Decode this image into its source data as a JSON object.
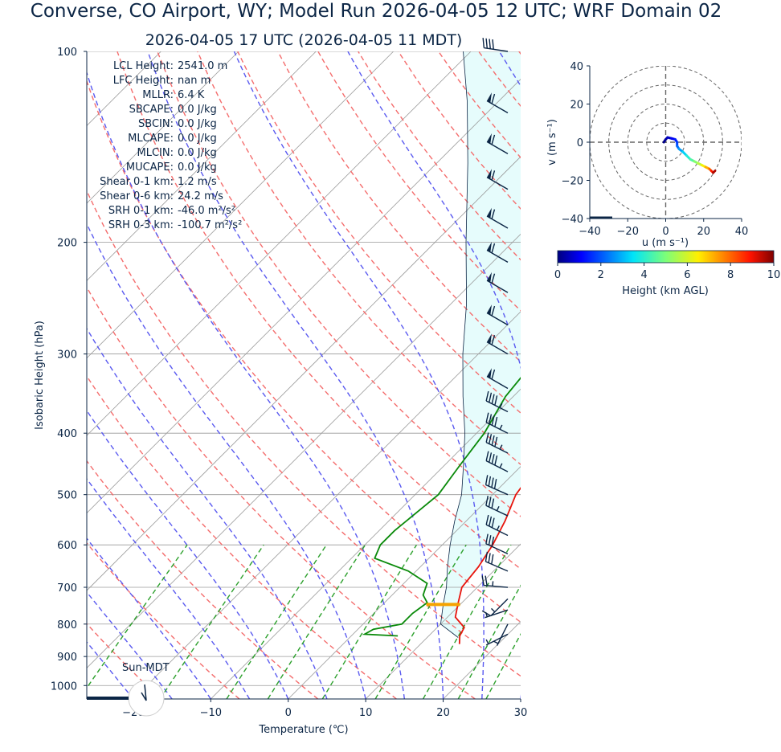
{
  "title": "Converse, CO Airport, WY; Model Run 2026-04-05 12 UTC; WRF Domain 02",
  "subtitle": "2026-04-05 17 UTC  (2026-04-05 11 MDT)",
  "stats": [
    {
      "label": "LCL Height:",
      "value": "2541.0 m"
    },
    {
      "label": "LFC Height:",
      "value": "nan m"
    },
    {
      "label": "MLLR:",
      "value": "6.4 K"
    },
    {
      "label": "SBCAPE:",
      "value": "0.0 J/kg"
    },
    {
      "label": "SBCIN:",
      "value": "0.0 J/kg"
    },
    {
      "label": "MLCAPE:",
      "value": "0.0 J/kg"
    },
    {
      "label": "MLCIN:",
      "value": "0.0 J/kg"
    },
    {
      "label": "MUCAPE:",
      "value": "0.0 J/kg"
    },
    {
      "label": "Shear 0-1 km:",
      "value": "1.2 m/s"
    },
    {
      "label": "Shear 0-6 km:",
      "value": "24.2 m/s"
    },
    {
      "label": "SRH 0-1 km:",
      "value": "-46.0 m²/s²"
    },
    {
      "label": "SRH 0-3 km:",
      "value": "-100.7 m²/s²"
    }
  ],
  "sun_label": "Sun-MDT",
  "colors": {
    "temperature": "#e8140c",
    "dewpoint": "#0a8a0a",
    "parcel": "#0b2545",
    "cape_fill": "#e6fcfc",
    "dry_adiabat": "#f46d6d",
    "moist_adiabat": "#5a5af0",
    "mixing_ratio": "#2ca02c",
    "isotherm": "#9a9a9a",
    "lcl_marker": "#f5a300",
    "barb": "#0b2545"
  },
  "chart_data": [
    {
      "type": "line",
      "name": "skew-t",
      "xlabel": "Temperature (℃)",
      "ylabel": "Isobaric Height (hPa)",
      "xlim": [
        -26,
        30
      ],
      "ylim": [
        1050,
        100
      ],
      "x_ticks": [
        -20,
        -10,
        0,
        10,
        20,
        30
      ],
      "x_tick_labels": [
        "−20",
        "−10",
        "0",
        "10",
        "20",
        "30"
      ],
      "y_ticks": [
        100,
        200,
        300,
        400,
        500,
        600,
        700,
        800,
        900,
        1000
      ],
      "y_scale": "log",
      "grid": true,
      "series": [
        {
          "key": "temperature",
          "points": [
            [
              860,
              15
            ],
            [
              835,
              14
            ],
            [
              810,
              13.5
            ],
            [
              780,
              11
            ],
            [
              740,
              9.5
            ],
            [
              700,
              8
            ],
            [
              650,
              7.5
            ],
            [
              600,
              6.5
            ],
            [
              550,
              5
            ],
            [
              500,
              3
            ],
            [
              450,
              2
            ],
            [
              400,
              1
            ],
            [
              350,
              -2
            ],
            [
              300,
              -6
            ],
            [
              250,
              -10.5
            ],
            [
              220,
              -12
            ],
            [
              185,
              -4
            ],
            [
              155,
              6
            ],
            [
              137,
              16
            ],
            [
              118,
              18
            ],
            [
              100,
              22
            ]
          ]
        },
        {
          "key": "dewpoint",
          "points": [
            [
              835,
              6
            ],
            [
              830,
              1.5
            ],
            [
              815,
              2
            ],
            [
              800,
              5
            ],
            [
              770,
              5
            ],
            [
              740,
              5.5
            ],
            [
              720,
              4
            ],
            [
              690,
              3
            ],
            [
              660,
              -1
            ],
            [
              630,
              -7
            ],
            [
              600,
              -8
            ],
            [
              570,
              -8
            ],
            [
              500,
              -7
            ],
            [
              450,
              -8
            ],
            [
              400,
              -9
            ],
            [
              350,
              -11
            ],
            [
              300,
              -12
            ],
            [
              250,
              -14
            ],
            [
              220,
              -15
            ],
            [
              200,
              -14.5
            ],
            [
              163,
              -15
            ],
            [
              150,
              -13
            ],
            [
              100,
              -3
            ]
          ]
        },
        {
          "key": "parcel",
          "points": [
            [
              840,
              14
            ],
            [
              800,
              10
            ],
            [
              745,
              7.8
            ],
            [
              700,
              6
            ],
            [
              650,
              3.5
            ],
            [
              600,
              1
            ],
            [
              550,
              -1.5
            ],
            [
              500,
              -4
            ],
            [
              450,
              -7.5
            ],
            [
              400,
              -11.5
            ],
            [
              350,
              -16.5
            ],
            [
              300,
              -22
            ],
            [
              250,
              -28
            ],
            [
              200,
              -36
            ],
            [
              150,
              -46
            ],
            [
              120,
              -54
            ],
            [
              100,
              -61
            ]
          ]
        }
      ],
      "lcl": {
        "pressure_hpa": 745,
        "temperature_c": 7.8
      },
      "wind_barbs": [
        {
          "pressure": 830,
          "u_ms": 2,
          "v_ms": 1
        },
        {
          "pressure": 800,
          "u_ms": 1,
          "v_ms": 2
        },
        {
          "pressure": 760,
          "u_ms": 3,
          "v_ms": 1
        },
        {
          "pressure": 730,
          "u_ms": 5,
          "v_ms": 5
        },
        {
          "pressure": 700,
          "u_ms": 12,
          "v_ms": -1
        },
        {
          "pressure": 660,
          "u_ms": 14,
          "v_ms": -6
        },
        {
          "pressure": 620,
          "u_ms": 15,
          "v_ms": -7
        },
        {
          "pressure": 580,
          "u_ms": 16,
          "v_ms": -8
        },
        {
          "pressure": 540,
          "u_ms": 17,
          "v_ms": -8
        },
        {
          "pressure": 500,
          "u_ms": 18,
          "v_ms": -8
        },
        {
          "pressure": 460,
          "u_ms": 20,
          "v_ms": -10
        },
        {
          "pressure": 430,
          "u_ms": 20,
          "v_ms": -10
        },
        {
          "pressure": 400,
          "u_ms": 20,
          "v_ms": -10
        },
        {
          "pressure": 370,
          "u_ms": 20,
          "v_ms": -10
        },
        {
          "pressure": 340,
          "u_ms": 26,
          "v_ms": -15
        },
        {
          "pressure": 300,
          "u_ms": 26,
          "v_ms": -15
        },
        {
          "pressure": 270,
          "u_ms": 26,
          "v_ms": -15
        },
        {
          "pressure": 240,
          "u_ms": 26,
          "v_ms": -15
        },
        {
          "pressure": 215,
          "u_ms": 26,
          "v_ms": -15
        },
        {
          "pressure": 190,
          "u_ms": 26,
          "v_ms": -15
        },
        {
          "pressure": 165,
          "u_ms": 26,
          "v_ms": -15
        },
        {
          "pressure": 145,
          "u_ms": 26,
          "v_ms": -15
        },
        {
          "pressure": 125,
          "u_ms": 26,
          "v_ms": -15
        },
        {
          "pressure": 100,
          "u_ms": 20,
          "v_ms": -3
        }
      ]
    },
    {
      "type": "line",
      "name": "hodograph",
      "xlabel": "u (m s⁻¹)",
      "ylabel": "v (m s⁻¹)",
      "xlim": [
        -40,
        40
      ],
      "ylim": [
        -40,
        40
      ],
      "x_ticks": [
        -40,
        -20,
        0,
        20,
        40
      ],
      "y_ticks": [
        40,
        20,
        0,
        -20,
        -40
      ],
      "x_tick_labels": [
        "−40",
        "−20",
        "0",
        "20",
        "40"
      ],
      "y_tick_labels": [
        "40",
        "20",
        "0",
        "−20",
        "−40"
      ],
      "rings": [
        10,
        20,
        30,
        40
      ],
      "points": [
        [
          -1,
          0,
          0.0
        ],
        [
          0,
          1.5,
          0.2
        ],
        [
          1,
          2.5,
          0.4
        ],
        [
          3,
          2,
          0.8
        ],
        [
          5,
          1.5,
          1.2
        ],
        [
          6,
          0,
          1.6
        ],
        [
          6,
          -2,
          2.0
        ],
        [
          7,
          -3.5,
          2.5
        ],
        [
          9,
          -5,
          3.0
        ],
        [
          11,
          -7,
          3.6
        ],
        [
          13,
          -9,
          4.2
        ],
        [
          15,
          -10,
          4.8
        ],
        [
          17,
          -11,
          5.4
        ],
        [
          19,
          -12,
          6.0
        ],
        [
          21,
          -13,
          6.8
        ],
        [
          23,
          -14,
          7.6
        ],
        [
          24,
          -15,
          8.4
        ],
        [
          25,
          -16,
          9.2
        ],
        [
          26,
          -15,
          10.0
        ]
      ]
    },
    {
      "type": "heatmap",
      "name": "colorbar",
      "label": "Height (km AGL)",
      "range": [
        0,
        10
      ],
      "ticks": [
        0,
        2,
        4,
        6,
        8,
        10
      ],
      "colormap": "jet"
    }
  ]
}
